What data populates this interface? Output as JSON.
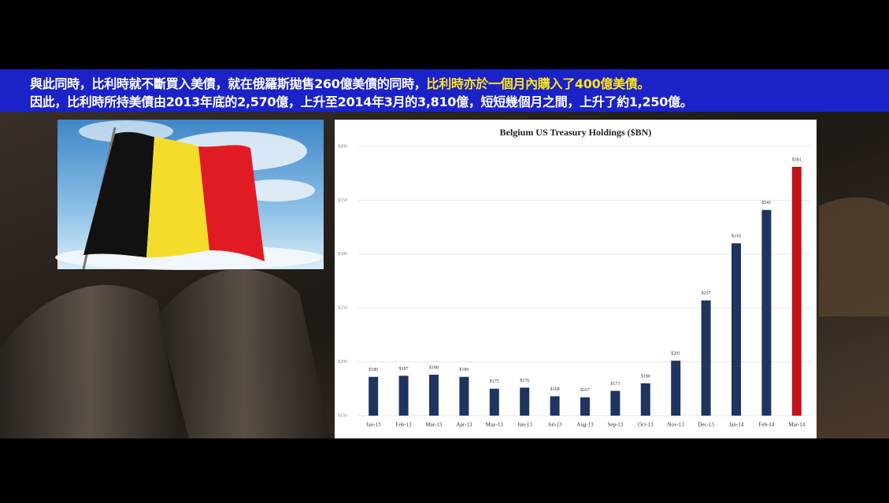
{
  "caption": {
    "lines": [
      [
        "與此同時，比利時就不斷買入美債，就在俄羅斯拋售260億美債的同時，",
        "比利時亦於一個月內購入了400億美債。"
      ],
      [
        "因此，比利時所持美債由2013年底的2,570億，上升至2014年3月的3,810億，短短幾個月之間，上升了約1,250億。"
      ]
    ]
  },
  "chart_data": {
    "type": "bar",
    "title": "Belgium US Treasury Holdings ($BN)",
    "categories": [
      "Jan-13",
      "Feb-13",
      "Mar-13",
      "Apr-13",
      "May-13",
      "Jun-13",
      "Jul-13",
      "Aug-13",
      "Sep-13",
      "Oct-13",
      "Nov-13",
      "Dec-13",
      "Jan-14",
      "Feb-14",
      "Mar-14"
    ],
    "values": [
      186,
      187,
      188,
      186,
      175,
      176,
      168,
      167,
      173,
      180,
      201,
      257,
      310,
      341,
      381
    ],
    "value_labels": [
      "$186",
      "$187",
      "$188",
      "$186",
      "$175",
      "$176",
      "$168",
      "$167",
      "$173",
      "$180",
      "$201",
      "$257",
      "$310",
      "$341",
      "$381"
    ],
    "colors": [
      "#1f3560",
      "#1f3560",
      "#1f3560",
      "#1f3560",
      "#1f3560",
      "#1f3560",
      "#1f3560",
      "#1f3560",
      "#1f3560",
      "#1f3560",
      "#1f3560",
      "#1f3560",
      "#1f3560",
      "#1f3560",
      "#c0141a"
    ],
    "ylim": [
      150,
      400
    ],
    "yticks": [
      {
        "value": 150,
        "label": "$150"
      },
      {
        "value": 200,
        "label": "$200"
      },
      {
        "value": 250,
        "label": "$250"
      },
      {
        "value": 300,
        "label": "$300"
      },
      {
        "value": 350,
        "label": "$350"
      },
      {
        "value": 400,
        "label": "$400"
      }
    ],
    "grid": true
  }
}
